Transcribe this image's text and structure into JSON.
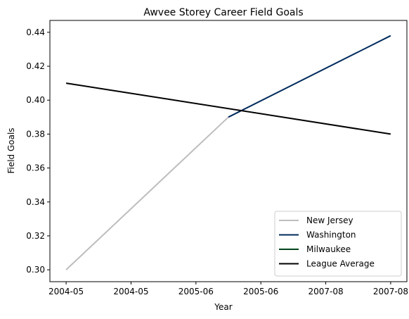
{
  "chart_data": {
    "type": "line",
    "title": "Awvee Storey Career Field Goals",
    "xlabel": "Year",
    "ylabel": "Field Goals",
    "x_tick_labels": [
      "2004-05",
      "2004-05",
      "2005-06",
      "2005-06",
      "2007-08",
      "2007-08"
    ],
    "xlim": [
      -0.1,
      2.1
    ],
    "ylim": [
      0.293,
      0.447
    ],
    "y_ticks": [
      0.3,
      0.32,
      0.34,
      0.36,
      0.38,
      0.4,
      0.42,
      0.44
    ],
    "legend_position": "lower right",
    "grid": false,
    "series": [
      {
        "name": "New Jersey",
        "color": "#bdbdbd",
        "x": [
          0,
          1.0
        ],
        "y": [
          0.3,
          0.39
        ]
      },
      {
        "name": "Washington",
        "color": "#002b5c",
        "x": [
          1.0,
          2.0
        ],
        "y": [
          0.39,
          0.438
        ]
      },
      {
        "name": "Milwaukee",
        "color": "#00471b",
        "x": [],
        "y": []
      },
      {
        "name": "League Average",
        "color": "#000000",
        "x": [
          0,
          2.0
        ],
        "y": [
          0.41,
          0.38
        ]
      }
    ]
  }
}
